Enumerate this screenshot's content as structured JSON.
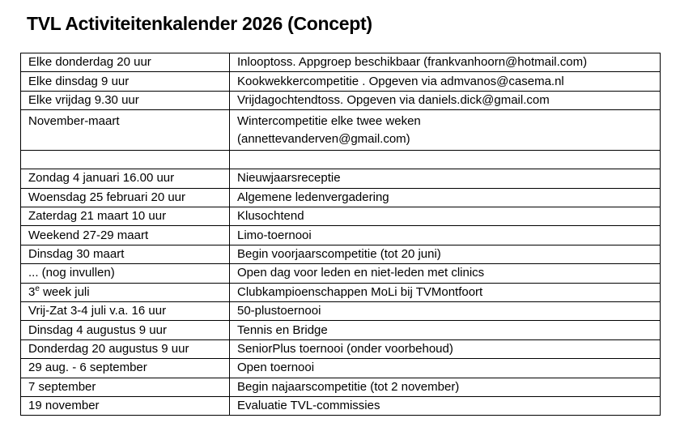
{
  "page": {
    "title": "TVL Activiteitenkalender 2026 (Concept)"
  },
  "colors": {
    "text": "#000000",
    "border": "#000000",
    "background": "#ffffff"
  },
  "table": {
    "rows": [
      {
        "left": "Elke donderdag 20 uur",
        "right": "Inlooptoss. Appgroep beschikbaar (frankvanhoorn@hotmail.com)"
      },
      {
        "left": "Elke dinsdag 9 uur",
        "right": "Kookwekkercompetitie . Opgeven via admvanos@casema.nl"
      },
      {
        "left": "Elke vrijdag 9.30 uur",
        "right": "Vrijdagochtendtoss. Opgeven via daniels.dick@gmail.com"
      },
      {
        "left": "November-maart",
        "right": "Wintercompetitie elke twee weken\n(annettevanderven@gmail.com)"
      },
      {
        "left": "",
        "right": ""
      },
      {
        "left": "Zondag 4 januari 16.00 uur",
        "right": "Nieuwjaarsreceptie"
      },
      {
        "left": "Woensdag 25 februari 20 uur",
        "right": "Algemene ledenvergadering"
      },
      {
        "left": "Zaterdag 21 maart 10 uur",
        "right": "Klusochtend"
      },
      {
        "left": "Weekend 27-29 maart",
        "right": "Limo-toernooi"
      },
      {
        "left": "Dinsdag 30 maart",
        "right": "Begin voorjaarscompetitie (tot 20 juni)"
      },
      {
        "left": "... (nog invullen)",
        "right": "Open dag voor leden en niet-leden met clinics"
      },
      {
        "left_base": "3",
        "left_sup": "e",
        "left_rest": " week juli",
        "right": "Clubkampioenschappen MoLi bij TVMontfoort"
      },
      {
        "left": "Vrij-Zat 3-4 juli v.a. 16 uur",
        "right": "50-plustoernooi"
      },
      {
        "left": "Dinsdag 4 augustus 9 uur",
        "right": "Tennis en Bridge"
      },
      {
        "left": "Donderdag 20 augustus 9 uur",
        "right": "SeniorPlus toernooi (onder voorbehoud)"
      },
      {
        "left": "29 aug. - 6 september",
        "right": "Open toernooi"
      },
      {
        "left": "7 september",
        "right": "Begin najaarscompetitie (tot 2 november)"
      },
      {
        "left": "19 november",
        "right": "Evaluatie TVL-commissies"
      }
    ]
  }
}
